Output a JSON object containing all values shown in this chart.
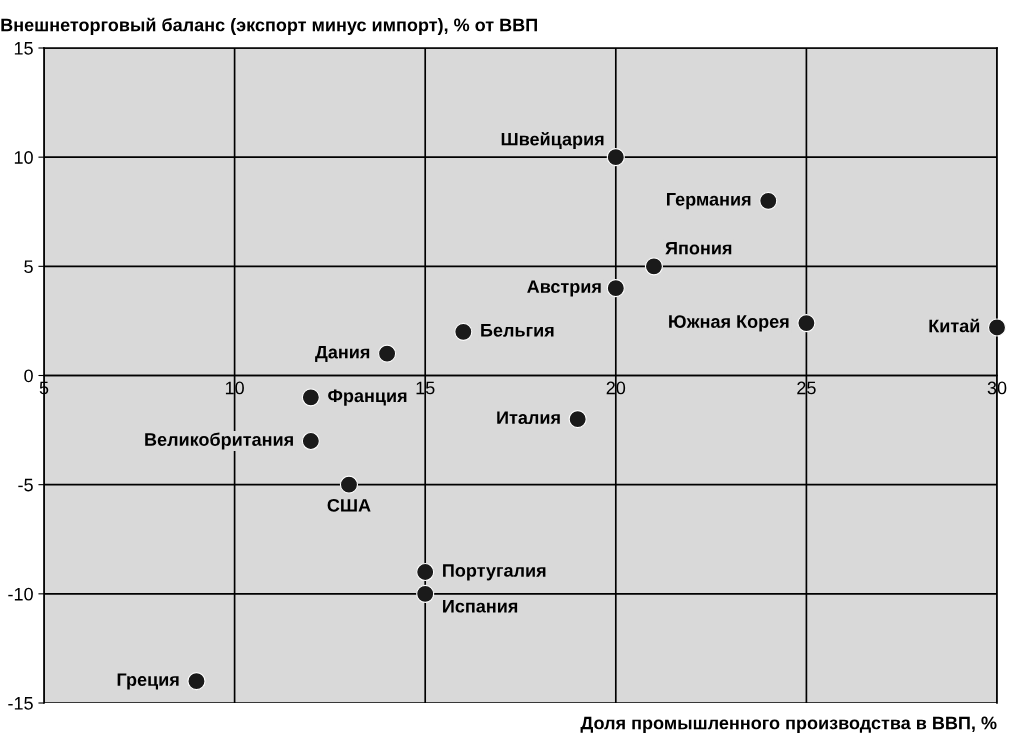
{
  "chart_data": {
    "type": "scatter",
    "xlabel": "Доля промышленного производства в ВВП, %",
    "ylabel": "Внешнеторговый баланс (экспорт минус импорт), % от ВВП",
    "x": [
      20,
      24,
      21,
      20,
      16,
      14,
      25,
      30,
      12,
      19,
      12,
      13,
      15,
      15,
      9
    ],
    "series": [
      {
        "color": "#1a1a1a",
        "values": [
          10,
          8,
          5,
          4,
          2,
          1,
          2.4,
          2.2,
          -1,
          -2,
          -3,
          -5,
          -9,
          -10,
          -14
        ]
      }
    ],
    "annotations": [
      {
        "text": "Швейцария",
        "x": 20,
        "y": 10
      },
      {
        "text": "Германия",
        "x": 24,
        "y": 8
      },
      {
        "text": "Япония",
        "x": 21,
        "y": 5
      },
      {
        "text": "Австрия",
        "x": 20,
        "y": 4
      },
      {
        "text": "Бельгия",
        "x": 16,
        "y": 2
      },
      {
        "text": "Дания",
        "x": 14,
        "y": 1
      },
      {
        "text": "Южная Корея",
        "x": 25,
        "y": 2.4
      },
      {
        "text": "Китай",
        "x": 30,
        "y": 2.2
      },
      {
        "text": "Франция",
        "x": 12,
        "y": -1
      },
      {
        "text": "Италия",
        "x": 19,
        "y": -2
      },
      {
        "text": "Великобритания",
        "x": 12,
        "y": -3
      },
      {
        "text": "США",
        "x": 13,
        "y": -5
      },
      {
        "text": "Португалия",
        "x": 15,
        "y": -9
      },
      {
        "text": "Испания",
        "x": 15,
        "y": -10
      },
      {
        "text": "Греция",
        "x": 9,
        "y": -14
      }
    ],
    "xlim": [
      5,
      30
    ],
    "xticks": [
      5,
      10,
      15,
      20,
      25,
      30
    ],
    "ylim": [
      -15,
      15
    ],
    "yticks": [
      -15,
      -10,
      -5,
      0,
      5,
      10,
      15
    ],
    "grid": true,
    "marker": "circle"
  }
}
